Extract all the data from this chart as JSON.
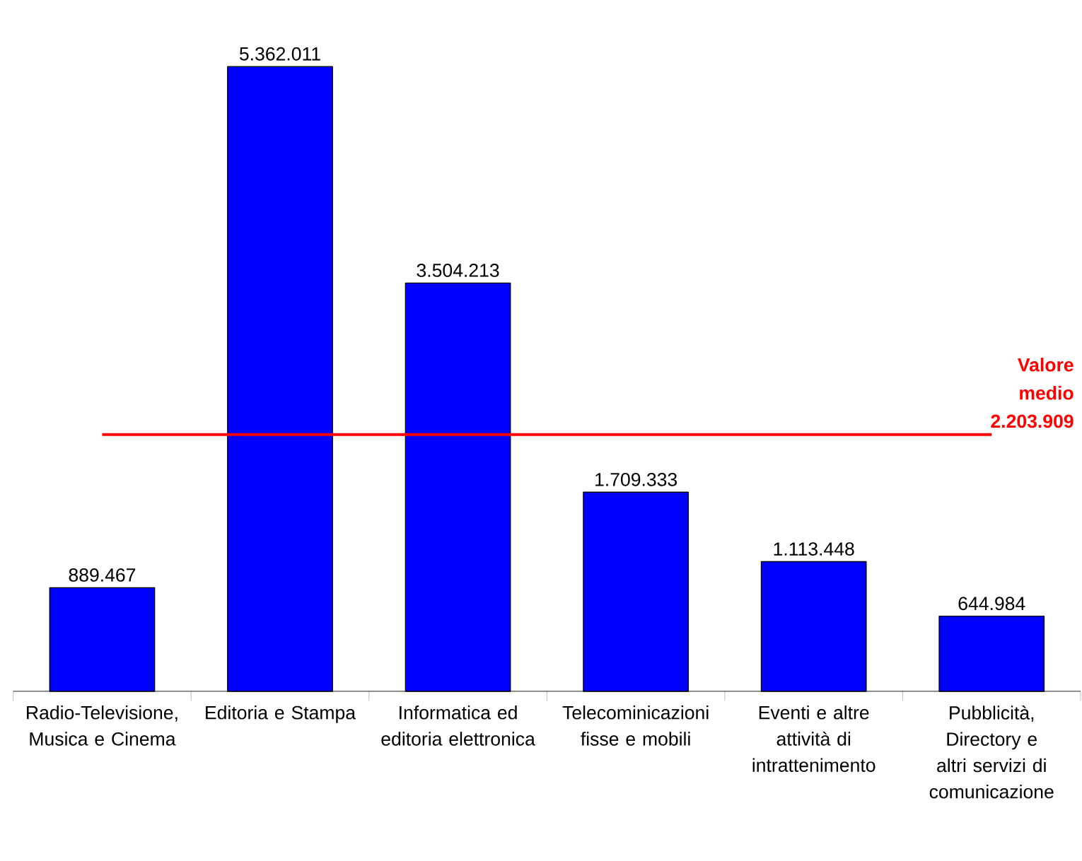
{
  "chart_data": {
    "type": "bar",
    "categories": [
      "Radio-Televisione, Musica e Cinema",
      "Editoria e Stampa",
      "Informatica ed editoria elettronica",
      "Telecominicazioni fisse e mobili",
      "Eventi e altre attività di intrattenimento",
      "Pubblicità, Directory e altri servizi di comunicazione"
    ],
    "values": [
      889467,
      5362011,
      3504213,
      1709333,
      1113448,
      644984
    ],
    "value_labels": [
      "889.467",
      "5.362.011",
      "3.504.213",
      "1.709.333",
      "1.113.448",
      "644.984"
    ],
    "color": "#0000ff",
    "tick_labels": "x",
    "ref_lines": [
      {
        "axis": "y",
        "value": 2203909,
        "label": "Valore medio 2.203.909",
        "color": "#ff0000"
      }
    ]
  }
}
